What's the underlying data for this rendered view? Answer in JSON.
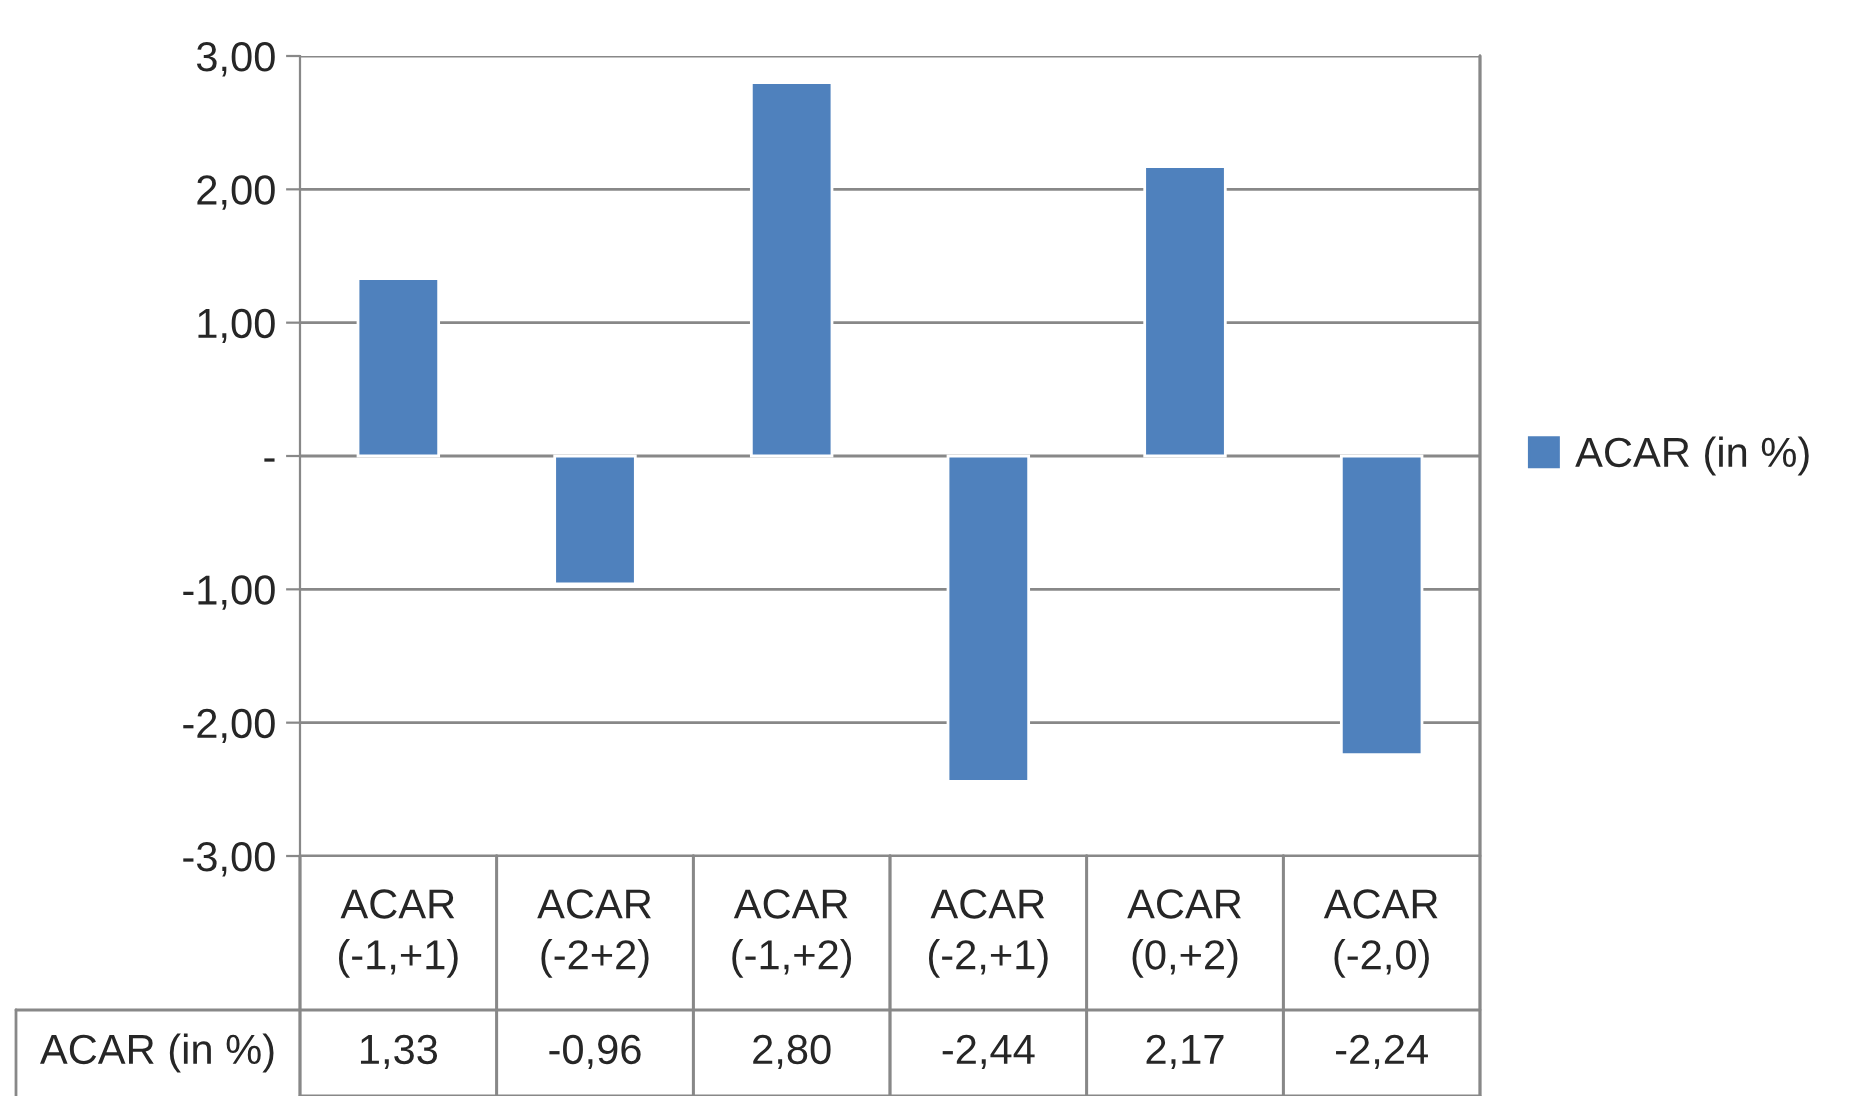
{
  "chart_data": {
    "type": "bar",
    "categories": [
      "ACAR (-1,+1)",
      "ACAR (-2+2)",
      "ACAR (-1,+2)",
      "ACAR (-2,+1)",
      "ACAR (0,+2)",
      "ACAR (-2,0)"
    ],
    "series": [
      {
        "name": "ACAR (in %)",
        "color": "#4f81bd",
        "values": [
          1.33,
          -0.96,
          2.8,
          -2.44,
          2.17,
          -2.24
        ],
        "value_labels": [
          "1,33",
          "-0,96",
          "2,80",
          "-2,44",
          "2,17",
          "-2,24"
        ]
      }
    ],
    "ylim": [
      -3,
      3
    ],
    "yticks": [
      {
        "value": -3,
        "label": "-3,00"
      },
      {
        "value": -2,
        "label": "-2,00"
      },
      {
        "value": -1,
        "label": "-1,00"
      },
      {
        "value": 0,
        "label": "-"
      },
      {
        "value": 1,
        "label": "1,00"
      },
      {
        "value": 2,
        "label": "2,00"
      },
      {
        "value": 3,
        "label": "3,00"
      }
    ],
    "grid": "y",
    "legend": "right"
  }
}
